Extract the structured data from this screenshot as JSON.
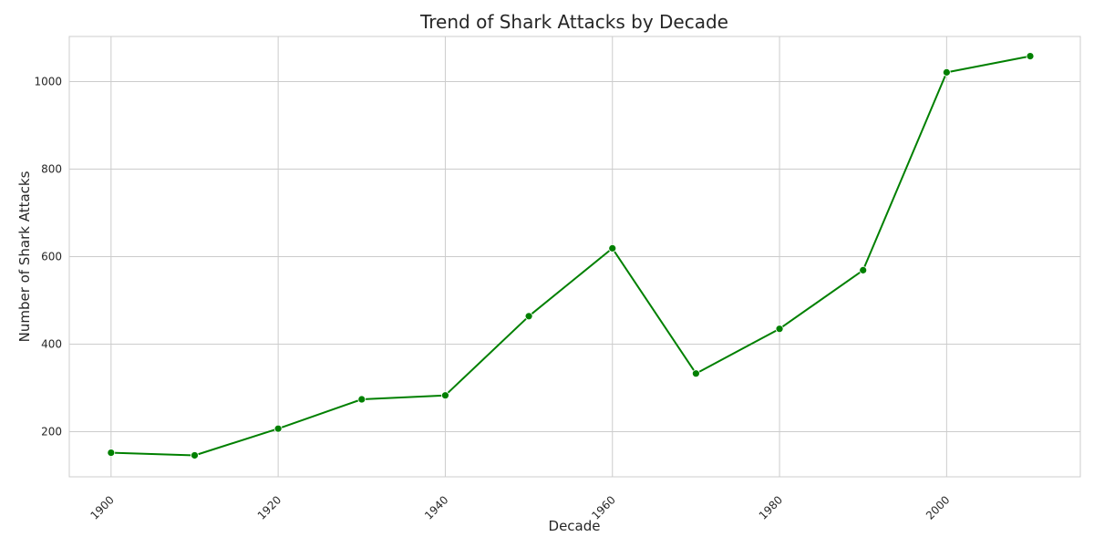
{
  "chart_data": {
    "type": "line",
    "title": "Trend of Shark Attacks by Decade",
    "xlabel": "Decade",
    "ylabel": "Number of Shark Attacks",
    "x": [
      1900,
      1910,
      1920,
      1930,
      1940,
      1950,
      1960,
      1970,
      1980,
      1990,
      2000,
      2010
    ],
    "series": [
      {
        "values": [
          152,
          146,
          207,
          274,
          283,
          464,
          619,
          333,
          435,
          569,
          1021,
          1058
        ]
      }
    ],
    "xlim": [
      1895,
      2016
    ],
    "ylim": [
      97,
      1103
    ],
    "xticks": [
      1900,
      1920,
      1940,
      1960,
      1980,
      2000
    ],
    "yticks": [
      200,
      400,
      600,
      800,
      1000
    ],
    "line_color": "#008000",
    "grid": true,
    "grid_color": "#cccccc"
  }
}
